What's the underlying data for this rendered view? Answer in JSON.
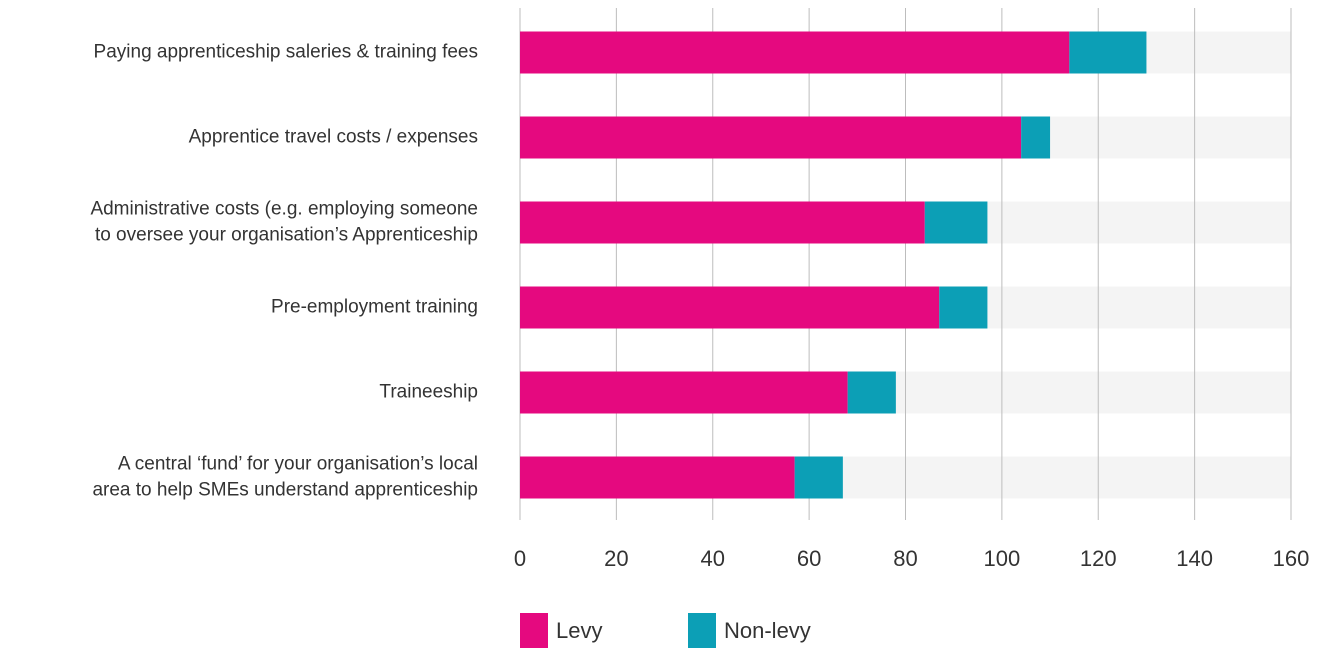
{
  "chart_data": {
    "type": "stacked-barh",
    "categories": [
      [
        "Paying apprenticeship saleries & training fees"
      ],
      [
        "Apprentice travel costs / expenses"
      ],
      [
        "Administrative costs (e.g. employing someone",
        "to oversee your organisation’s Apprenticeship"
      ],
      [
        "Pre-employment training"
      ],
      [
        "Traineeship"
      ],
      [
        "A central ‘fund’ for your organisation’s local",
        "area to help SMEs understand apprenticeship"
      ]
    ],
    "series": [
      {
        "name": "Levy",
        "color": "#e5097f",
        "values": [
          114,
          104,
          84,
          87,
          68,
          57
        ]
      },
      {
        "name": "Non-levy",
        "color": "#0c9fb6",
        "values": [
          16,
          6,
          13,
          10,
          10,
          10
        ]
      }
    ],
    "xlim": [
      0,
      160
    ],
    "xticks": [
      0,
      20,
      40,
      60,
      80,
      100,
      120,
      140,
      160
    ],
    "grid": true
  }
}
